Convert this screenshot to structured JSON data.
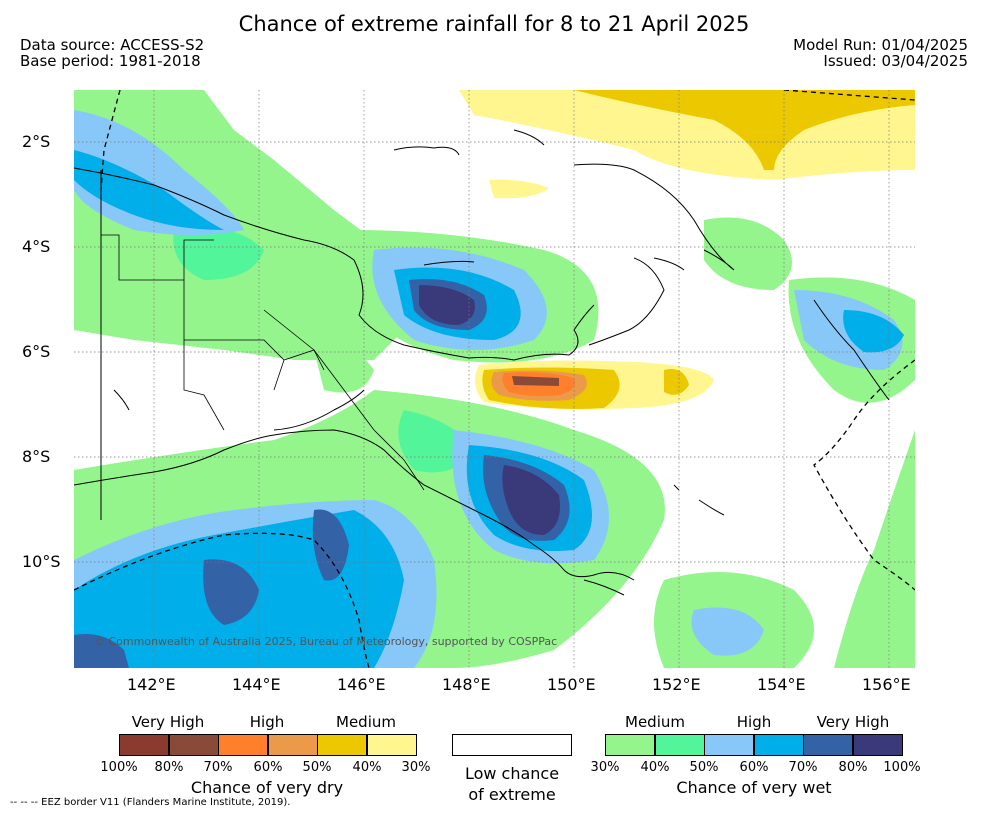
{
  "header": {
    "title": "Chance of extreme rainfall for 8 to 21 April 2025",
    "data_source": "Data source: ACCESS-S2",
    "base_period": "Base period: 1981-2018",
    "model_run": "Model Run: 01/04/2025",
    "issued": "Issued: 03/04/2025"
  },
  "map": {
    "region": "Papua New Guinea",
    "lat_labels": [
      "2°S",
      "4°S",
      "6°S",
      "8°S",
      "10°S"
    ],
    "lon_labels": [
      "142°E",
      "144°E",
      "146°E",
      "148°E",
      "150°E",
      "152°E",
      "154°E",
      "156°E"
    ],
    "copyright": "© Commonwealth of Australia 2025, Bureau of Meteorology, supported by COSPPac"
  },
  "legend": {
    "dry": {
      "categories": [
        "Very High",
        "High",
        "Medium"
      ],
      "colors": [
        "#8b3a2f",
        "#8a4a3a",
        "#ff7f2a",
        "#eb9a4a",
        "#ecc800",
        "#fff68f"
      ],
      "ticks": [
        "100%",
        "80%",
        "70%",
        "60%",
        "50%",
        "40%",
        "30%"
      ],
      "title": "Chance of very dry"
    },
    "low": {
      "color": "#ffffff",
      "title_line1": "Low chance",
      "title_line2": "of extreme"
    },
    "wet": {
      "categories": [
        "Medium",
        "High",
        "Very High"
      ],
      "colors": [
        "#94f58c",
        "#52f59a",
        "#88c8f8",
        "#00aeea",
        "#3462a6",
        "#3a3a7a"
      ],
      "ticks": [
        "30%",
        "40%",
        "50%",
        "60%",
        "70%",
        "80%",
        "100%"
      ],
      "title": "Chance of very wet"
    }
  },
  "footer": {
    "eez_note": "-- -- -- EEZ border V11 (Flanders Marine Institute, 2019)."
  }
}
